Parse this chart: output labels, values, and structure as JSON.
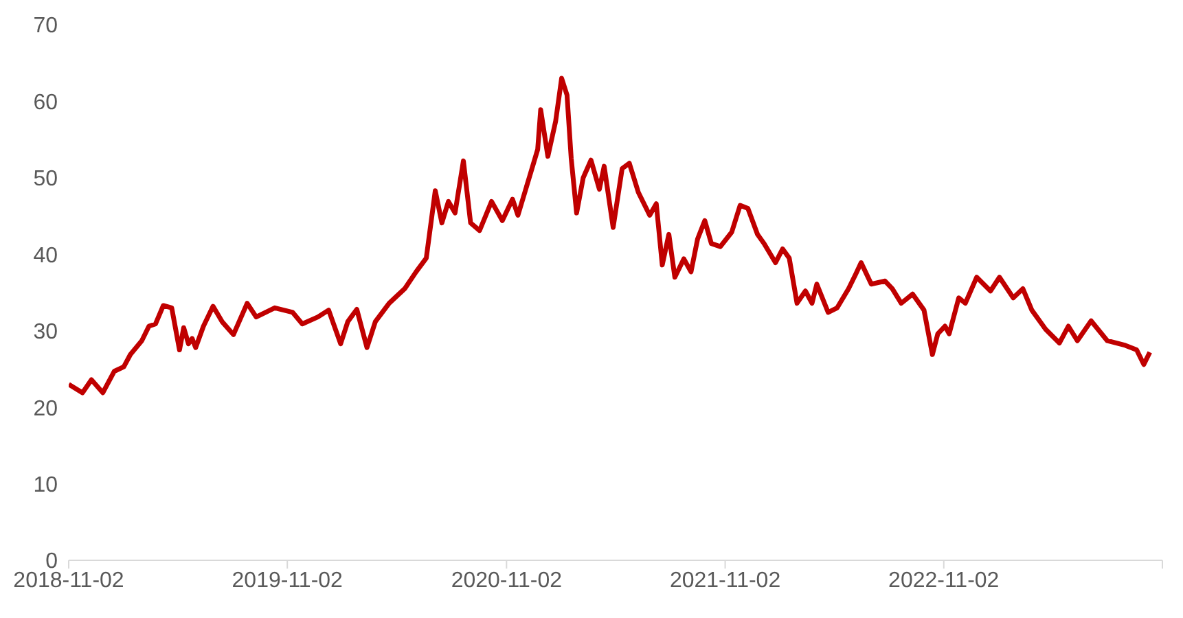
{
  "chart_data": {
    "type": "line",
    "xlim": [
      "2018-11-02",
      "2023-11-02"
    ],
    "xticks": [
      "2018-11-02",
      "2019-11-02",
      "2020-11-02",
      "2021-11-02",
      "2022-11-02",
      {
        "value": "2023-11-02",
        "label": null
      }
    ],
    "ylim": [
      0,
      70
    ],
    "yticks": [
      0,
      10,
      20,
      30,
      40,
      50,
      60,
      70
    ],
    "grid": false,
    "legend": false,
    "marker": "none",
    "line_style": "solid",
    "x": [
      "2018-11-02",
      "2018-11-25",
      "2018-12-10",
      "2018-12-29",
      "2019-01-17",
      "2019-02-02",
      "2019-02-13",
      "2019-03-04",
      "2019-03-16",
      "2019-03-27",
      "2019-04-09",
      "2019-04-23",
      "2019-05-06",
      "2019-05-13",
      "2019-05-21",
      "2019-05-27",
      "2019-06-02",
      "2019-06-15",
      "2019-07-01",
      "2019-07-16",
      "2019-08-04",
      "2019-08-27",
      "2019-09-11",
      "2019-10-12",
      "2019-11-11",
      "2019-11-27",
      "2019-12-23",
      "2020-01-10",
      "2020-01-30",
      "2020-02-11",
      "2020-02-26",
      "2020-03-14",
      "2020-03-28",
      "2020-04-20",
      "2020-05-16",
      "2020-06-04",
      "2020-06-21",
      "2020-07-06",
      "2020-07-17",
      "2020-07-28",
      "2020-08-08",
      "2020-08-22",
      "2020-09-03",
      "2020-09-18",
      "2020-10-08",
      "2020-10-26",
      "2020-11-12",
      "2020-11-21",
      "2020-12-11",
      "2020-12-24",
      "2020-12-29",
      "2021-01-10",
      "2021-01-23",
      "2021-02-02",
      "2021-02-11",
      "2021-02-18",
      "2021-02-27",
      "2021-03-10",
      "2021-03-23",
      "2021-04-06",
      "2021-04-14",
      "2021-04-29",
      "2021-05-14",
      "2021-05-26",
      "2021-06-10",
      "2021-06-29",
      "2021-07-10",
      "2021-07-20",
      "2021-07-31",
      "2021-08-10",
      "2021-08-25",
      "2021-09-06",
      "2021-09-17",
      "2021-09-29",
      "2021-10-10",
      "2021-10-25",
      "2021-11-13",
      "2021-11-27",
      "2021-12-10",
      "2021-12-26",
      "2022-01-06",
      "2022-01-25",
      "2022-02-06",
      "2022-02-17",
      "2022-03-02",
      "2022-03-16",
      "2022-03-27",
      "2022-04-04",
      "2022-04-23",
      "2022-05-08",
      "2022-05-27",
      "2022-06-08",
      "2022-06-17",
      "2022-07-04",
      "2022-07-27",
      "2022-08-08",
      "2022-08-23",
      "2022-09-11",
      "2022-09-30",
      "2022-10-14",
      "2022-10-23",
      "2022-11-04",
      "2022-11-11",
      "2022-11-27",
      "2022-12-08",
      "2022-12-27",
      "2023-01-19",
      "2023-02-03",
      "2023-02-26",
      "2023-03-14",
      "2023-03-29",
      "2023-04-21",
      "2023-05-14",
      "2023-05-29",
      "2023-06-13",
      "2023-07-06",
      "2023-08-02",
      "2023-09-01",
      "2023-09-20",
      "2023-10-02",
      "2023-10-12"
    ],
    "series": [
      {
        "color": "#c00000",
        "values": [
          23.0,
          21.9,
          23.6,
          21.9,
          24.7,
          25.3,
          26.9,
          28.7,
          30.6,
          30.9,
          33.3,
          33.0,
          27.5,
          30.4,
          28.3,
          29.0,
          27.8,
          30.6,
          33.2,
          31.2,
          29.5,
          33.6,
          31.8,
          33.0,
          32.4,
          30.9,
          31.8,
          32.7,
          28.3,
          31.2,
          32.8,
          27.8,
          31.2,
          33.6,
          35.5,
          37.7,
          39.5,
          48.3,
          44.1,
          46.9,
          45.4,
          52.2,
          44.1,
          43.1,
          46.9,
          44.4,
          47.2,
          45.1,
          50.3,
          53.7,
          58.9,
          52.8,
          57.4,
          63.0,
          60.8,
          52.5,
          45.4,
          50.0,
          52.3,
          48.5,
          51.5,
          43.5,
          51.2,
          51.9,
          48.1,
          45.1,
          46.6,
          38.6,
          42.6,
          37.0,
          39.4,
          37.7,
          42.0,
          44.4,
          41.4,
          41.0,
          42.9,
          46.4,
          46.0,
          42.6,
          41.4,
          38.9,
          40.7,
          39.5,
          33.6,
          35.2,
          33.6,
          36.1,
          32.4,
          33.0,
          35.5,
          37.4,
          38.9,
          36.1,
          36.5,
          35.5,
          33.6,
          34.8,
          32.7,
          26.9,
          29.6,
          30.6,
          29.6,
          34.3,
          33.6,
          37.0,
          35.2,
          37.0,
          34.3,
          35.5,
          32.7,
          30.2,
          28.4,
          30.6,
          28.7,
          31.3,
          28.7,
          28.1,
          27.5,
          25.6,
          27.2
        ]
      }
    ]
  }
}
